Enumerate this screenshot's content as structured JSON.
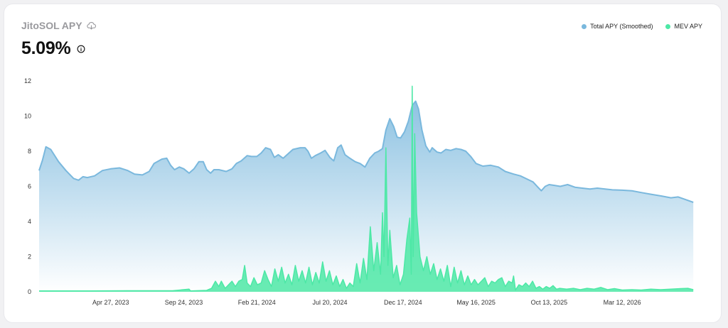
{
  "header": {
    "title": "JitoSOL APY",
    "value": "5.09%"
  },
  "icons": {
    "download": "download-cloud-icon",
    "info": "info-circle-icon"
  },
  "legend": {
    "items": [
      {
        "label": "Total APY (Smoothed)",
        "color": "#7ab8dd"
      },
      {
        "label": "MEV APY",
        "color": "#4de8a6"
      }
    ]
  },
  "chart_data": {
    "type": "area",
    "title": "JitoSOL APY",
    "ylim": [
      0,
      12
    ],
    "yticks": [
      0,
      2,
      4,
      6,
      8,
      10,
      12
    ],
    "xlim": [
      "2022-12-01",
      "2026-08-31"
    ],
    "xticks": [
      "Apr 27, 2023",
      "Sep 24, 2023",
      "Feb 21, 2024",
      "Jul 20, 2024",
      "Dec 17, 2024",
      "May 16, 2025",
      "Oct 13, 2025",
      "Mar 12, 2026"
    ],
    "grid": false,
    "legend_position": "top-right",
    "series": [
      {
        "name": "Total APY (Smoothed)",
        "color": "#7ab8dd",
        "points": [
          [
            "2022-12-01",
            6.9
          ],
          [
            "2022-12-08",
            7.5
          ],
          [
            "2022-12-15",
            8.25
          ],
          [
            "2022-12-25",
            8.1
          ],
          [
            "2023-01-10",
            7.4
          ],
          [
            "2023-01-25",
            6.9
          ],
          [
            "2023-02-10",
            6.45
          ],
          [
            "2023-02-20",
            6.35
          ],
          [
            "2023-03-01",
            6.55
          ],
          [
            "2023-03-10",
            6.5
          ],
          [
            "2023-03-25",
            6.6
          ],
          [
            "2023-04-10",
            6.9
          ],
          [
            "2023-04-27",
            7.0
          ],
          [
            "2023-05-15",
            7.05
          ],
          [
            "2023-06-01",
            6.9
          ],
          [
            "2023-06-15",
            6.7
          ],
          [
            "2023-07-01",
            6.65
          ],
          [
            "2023-07-15",
            6.85
          ],
          [
            "2023-07-25",
            7.3
          ],
          [
            "2023-08-10",
            7.55
          ],
          [
            "2023-08-20",
            7.6
          ],
          [
            "2023-08-28",
            7.2
          ],
          [
            "2023-09-05",
            6.95
          ],
          [
            "2023-09-15",
            7.1
          ],
          [
            "2023-09-24",
            7.0
          ],
          [
            "2023-10-05",
            6.75
          ],
          [
            "2023-10-15",
            7.0
          ],
          [
            "2023-10-25",
            7.4
          ],
          [
            "2023-11-03",
            7.4
          ],
          [
            "2023-11-10",
            6.95
          ],
          [
            "2023-11-18",
            6.75
          ],
          [
            "2023-11-25",
            6.95
          ],
          [
            "2023-12-05",
            6.95
          ],
          [
            "2023-12-20",
            6.85
          ],
          [
            "2024-01-01",
            7.0
          ],
          [
            "2024-01-10",
            7.3
          ],
          [
            "2024-01-20",
            7.45
          ],
          [
            "2024-02-01",
            7.75
          ],
          [
            "2024-02-10",
            7.7
          ],
          [
            "2024-02-21",
            7.7
          ],
          [
            "2024-03-01",
            7.9
          ],
          [
            "2024-03-10",
            8.2
          ],
          [
            "2024-03-20",
            8.1
          ],
          [
            "2024-03-28",
            7.65
          ],
          [
            "2024-04-05",
            7.8
          ],
          [
            "2024-04-15",
            7.6
          ],
          [
            "2024-04-25",
            7.85
          ],
          [
            "2024-05-05",
            8.1
          ],
          [
            "2024-05-20",
            8.2
          ],
          [
            "2024-05-30",
            8.2
          ],
          [
            "2024-06-05",
            8.0
          ],
          [
            "2024-06-12",
            7.6
          ],
          [
            "2024-06-20",
            7.75
          ],
          [
            "2024-07-01",
            7.9
          ],
          [
            "2024-07-10",
            8.05
          ],
          [
            "2024-07-20",
            7.65
          ],
          [
            "2024-07-28",
            7.45
          ],
          [
            "2024-08-05",
            8.2
          ],
          [
            "2024-08-12",
            8.35
          ],
          [
            "2024-08-20",
            7.8
          ],
          [
            "2024-08-30",
            7.6
          ],
          [
            "2024-09-10",
            7.4
          ],
          [
            "2024-09-20",
            7.3
          ],
          [
            "2024-09-30",
            7.1
          ],
          [
            "2024-10-10",
            7.6
          ],
          [
            "2024-10-20",
            7.9
          ],
          [
            "2024-10-28",
            8.0
          ],
          [
            "2024-11-05",
            8.15
          ],
          [
            "2024-11-12",
            9.2
          ],
          [
            "2024-11-20",
            9.85
          ],
          [
            "2024-11-28",
            9.4
          ],
          [
            "2024-12-05",
            8.8
          ],
          [
            "2024-12-12",
            8.75
          ],
          [
            "2024-12-20",
            9.1
          ],
          [
            "2024-12-28",
            9.7
          ],
          [
            "2025-01-05",
            10.6
          ],
          [
            "2025-01-12",
            10.85
          ],
          [
            "2025-01-18",
            10.4
          ],
          [
            "2025-01-25",
            9.2
          ],
          [
            "2025-02-02",
            8.3
          ],
          [
            "2025-02-10",
            7.95
          ],
          [
            "2025-02-15",
            8.2
          ],
          [
            "2025-02-25",
            7.95
          ],
          [
            "2025-03-05",
            7.9
          ],
          [
            "2025-03-15",
            8.1
          ],
          [
            "2025-03-25",
            8.05
          ],
          [
            "2025-04-05",
            8.15
          ],
          [
            "2025-04-15",
            8.1
          ],
          [
            "2025-04-25",
            8.0
          ],
          [
            "2025-05-05",
            7.7
          ],
          [
            "2025-05-16",
            7.3
          ],
          [
            "2025-05-30",
            7.15
          ],
          [
            "2025-06-15",
            7.2
          ],
          [
            "2025-07-01",
            7.1
          ],
          [
            "2025-07-15",
            6.85
          ],
          [
            "2025-08-01",
            6.7
          ],
          [
            "2025-08-15",
            6.6
          ],
          [
            "2025-08-30",
            6.4
          ],
          [
            "2025-09-10",
            6.25
          ],
          [
            "2025-09-20",
            5.95
          ],
          [
            "2025-09-27",
            5.75
          ],
          [
            "2025-10-05",
            6.0
          ],
          [
            "2025-10-13",
            6.1
          ],
          [
            "2025-10-25",
            6.05
          ],
          [
            "2025-11-05",
            6.0
          ],
          [
            "2025-11-20",
            6.1
          ],
          [
            "2025-12-05",
            5.95
          ],
          [
            "2025-12-20",
            5.9
          ],
          [
            "2026-01-05",
            5.85
          ],
          [
            "2026-01-20",
            5.9
          ],
          [
            "2026-02-05",
            5.85
          ],
          [
            "2026-02-20",
            5.8
          ],
          [
            "2026-03-12",
            5.78
          ],
          [
            "2026-04-01",
            5.75
          ],
          [
            "2026-04-20",
            5.65
          ],
          [
            "2026-05-10",
            5.55
          ],
          [
            "2026-06-01",
            5.45
          ],
          [
            "2026-06-20",
            5.35
          ],
          [
            "2026-07-05",
            5.4
          ],
          [
            "2026-07-20",
            5.25
          ],
          [
            "2026-08-05",
            5.09
          ]
        ]
      },
      {
        "name": "MEV APY",
        "color": "#4de8a6",
        "points": [
          [
            "2022-12-01",
            0.05
          ],
          [
            "2023-03-01",
            0.05
          ],
          [
            "2023-06-01",
            0.06
          ],
          [
            "2023-09-01",
            0.06
          ],
          [
            "2023-10-05",
            0.15
          ],
          [
            "2023-10-08",
            0.05
          ],
          [
            "2023-11-10",
            0.08
          ],
          [
            "2023-11-20",
            0.2
          ],
          [
            "2023-11-28",
            0.6
          ],
          [
            "2023-12-05",
            0.3
          ],
          [
            "2023-12-10",
            0.6
          ],
          [
            "2023-12-18",
            0.2
          ],
          [
            "2023-12-25",
            0.4
          ],
          [
            "2024-01-01",
            0.6
          ],
          [
            "2024-01-08",
            0.3
          ],
          [
            "2024-01-15",
            0.6
          ],
          [
            "2024-01-22",
            0.7
          ],
          [
            "2024-01-27",
            1.5
          ],
          [
            "2024-02-01",
            0.5
          ],
          [
            "2024-02-08",
            0.3
          ],
          [
            "2024-02-15",
            0.8
          ],
          [
            "2024-02-22",
            0.4
          ],
          [
            "2024-03-01",
            0.5
          ],
          [
            "2024-03-08",
            1.2
          ],
          [
            "2024-03-15",
            0.7
          ],
          [
            "2024-03-22",
            0.3
          ],
          [
            "2024-03-29",
            1.3
          ],
          [
            "2024-04-05",
            0.6
          ],
          [
            "2024-04-12",
            1.4
          ],
          [
            "2024-04-19",
            0.5
          ],
          [
            "2024-04-26",
            1.0
          ],
          [
            "2024-05-03",
            0.4
          ],
          [
            "2024-05-10",
            1.5
          ],
          [
            "2024-05-17",
            0.6
          ],
          [
            "2024-05-24",
            1.2
          ],
          [
            "2024-05-31",
            0.5
          ],
          [
            "2024-06-07",
            1.4
          ],
          [
            "2024-06-14",
            0.4
          ],
          [
            "2024-06-21",
            1.1
          ],
          [
            "2024-06-28",
            0.5
          ],
          [
            "2024-07-05",
            1.7
          ],
          [
            "2024-07-12",
            0.6
          ],
          [
            "2024-07-19",
            1.2
          ],
          [
            "2024-07-26",
            0.4
          ],
          [
            "2024-08-02",
            0.9
          ],
          [
            "2024-08-09",
            0.3
          ],
          [
            "2024-08-16",
            0.7
          ],
          [
            "2024-08-23",
            0.2
          ],
          [
            "2024-08-30",
            0.5
          ],
          [
            "2024-09-06",
            0.3
          ],
          [
            "2024-09-13",
            1.6
          ],
          [
            "2024-09-20",
            0.5
          ],
          [
            "2024-09-27",
            1.9
          ],
          [
            "2024-10-04",
            0.7
          ],
          [
            "2024-10-11",
            3.7
          ],
          [
            "2024-10-18",
            1.2
          ],
          [
            "2024-10-25",
            2.8
          ],
          [
            "2024-11-01",
            1.0
          ],
          [
            "2024-11-05",
            4.5
          ],
          [
            "2024-11-08",
            2.0
          ],
          [
            "2024-11-12",
            8.2
          ],
          [
            "2024-11-16",
            1.5
          ],
          [
            "2024-11-20",
            3.5
          ],
          [
            "2024-11-27",
            0.8
          ],
          [
            "2024-12-04",
            1.5
          ],
          [
            "2024-12-11",
            0.4
          ],
          [
            "2024-12-18",
            1.0
          ],
          [
            "2024-12-25",
            3.0
          ],
          [
            "2024-12-31",
            4.2
          ],
          [
            "2025-01-03",
            1.0
          ],
          [
            "2025-01-05",
            11.7
          ],
          [
            "2025-01-07",
            2.0
          ],
          [
            "2025-01-10",
            9.0
          ],
          [
            "2025-01-14",
            4.5
          ],
          [
            "2025-01-21",
            2.0
          ],
          [
            "2025-01-28",
            1.2
          ],
          [
            "2025-02-04",
            2.0
          ],
          [
            "2025-02-11",
            1.0
          ],
          [
            "2025-02-18",
            1.6
          ],
          [
            "2025-02-25",
            0.7
          ],
          [
            "2025-03-04",
            1.3
          ],
          [
            "2025-03-11",
            0.6
          ],
          [
            "2025-03-18",
            1.5
          ],
          [
            "2025-03-25",
            0.3
          ],
          [
            "2025-04-01",
            1.4
          ],
          [
            "2025-04-08",
            0.5
          ],
          [
            "2025-04-15",
            1.2
          ],
          [
            "2025-04-22",
            0.4
          ],
          [
            "2025-04-29",
            0.9
          ],
          [
            "2025-05-06",
            0.4
          ],
          [
            "2025-05-13",
            0.7
          ],
          [
            "2025-05-20",
            0.4
          ],
          [
            "2025-05-27",
            0.6
          ],
          [
            "2025-06-03",
            0.8
          ],
          [
            "2025-06-10",
            0.3
          ],
          [
            "2025-06-17",
            0.6
          ],
          [
            "2025-06-24",
            0.5
          ],
          [
            "2025-07-01",
            0.7
          ],
          [
            "2025-07-08",
            0.8
          ],
          [
            "2025-07-15",
            0.3
          ],
          [
            "2025-07-22",
            0.6
          ],
          [
            "2025-07-29",
            0.5
          ],
          [
            "2025-08-01",
            0.9
          ],
          [
            "2025-08-05",
            0.1
          ],
          [
            "2025-08-12",
            0.4
          ],
          [
            "2025-08-19",
            0.3
          ],
          [
            "2025-08-26",
            0.5
          ],
          [
            "2025-09-02",
            0.3
          ],
          [
            "2025-09-09",
            0.6
          ],
          [
            "2025-09-16",
            0.2
          ],
          [
            "2025-09-23",
            0.3
          ],
          [
            "2025-09-30",
            0.15
          ],
          [
            "2025-10-07",
            0.3
          ],
          [
            "2025-10-14",
            0.2
          ],
          [
            "2025-10-21",
            0.35
          ],
          [
            "2025-10-28",
            0.15
          ],
          [
            "2025-11-04",
            0.2
          ],
          [
            "2025-11-18",
            0.15
          ],
          [
            "2025-12-02",
            0.2
          ],
          [
            "2025-12-16",
            0.12
          ],
          [
            "2025-12-30",
            0.2
          ],
          [
            "2026-01-13",
            0.15
          ],
          [
            "2026-01-27",
            0.25
          ],
          [
            "2026-02-10",
            0.12
          ],
          [
            "2026-02-24",
            0.18
          ],
          [
            "2026-03-12",
            0.1
          ],
          [
            "2026-04-01",
            0.12
          ],
          [
            "2026-04-20",
            0.1
          ],
          [
            "2026-05-10",
            0.15
          ],
          [
            "2026-05-30",
            0.12
          ],
          [
            "2026-06-20",
            0.15
          ],
          [
            "2026-07-10",
            0.18
          ],
          [
            "2026-07-25",
            0.2
          ],
          [
            "2026-08-05",
            0.12
          ]
        ]
      }
    ]
  }
}
